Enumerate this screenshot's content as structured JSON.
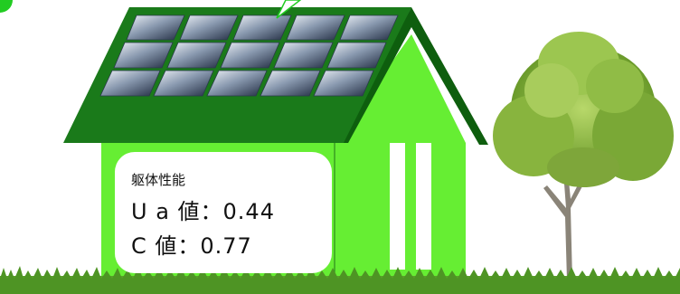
{
  "info_card": {
    "heading": "躯体性能",
    "ua_value": "U a 値：0.44",
    "c_value": "C 値：0.77"
  },
  "colors": {
    "wall": "#66ee33",
    "roof": "#1a7a1a",
    "roof_dark": "#0e5e0e",
    "solar_panel": "#6f7f95",
    "grass": "#5aa02a",
    "card_bg": "#ffffff"
  },
  "icons": [
    "solar-panel-icon",
    "tree-icon",
    "speech-bubble-tail-icon"
  ]
}
